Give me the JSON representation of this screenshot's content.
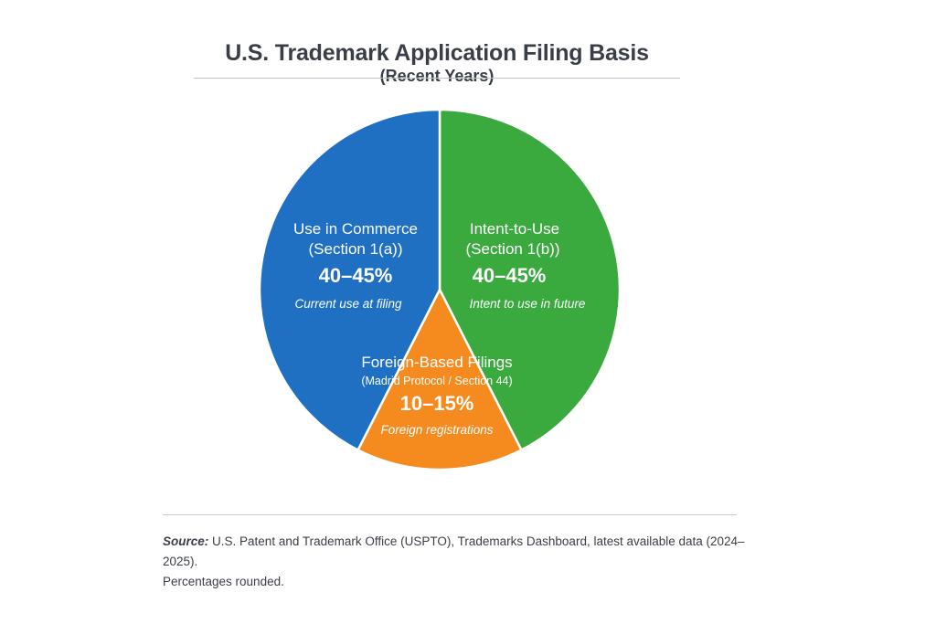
{
  "title": {
    "main": "U.S. Trademark Application Filing Basis",
    "sub": "(Recent Years)"
  },
  "chart_data": {
    "type": "pie",
    "title": "U.S. Trademark Application Filing Basis (Recent Years)",
    "slices": [
      {
        "name": "Use in Commerce",
        "subtitle": "(Section 1(a))",
        "value_label": "40–45%",
        "value": 42.5,
        "description": "Current use at filing",
        "color": "#1f6fc2"
      },
      {
        "name": "Intent-to-Use",
        "subtitle": "(Section 1(b))",
        "value_label": "40–45%",
        "value": 42.5,
        "description": "Intent to use in future",
        "color": "#3aaa3f"
      },
      {
        "name": "Foreign-Based Filings",
        "subtitle": "(Madrid Protocol / Section 44)",
        "value_label": "10–15%",
        "value": 15,
        "description": "Foreign registrations",
        "color": "#f58a1f"
      }
    ],
    "legend": "none"
  },
  "source": {
    "label": "Source:",
    "text": "U.S. Patent and Trademark Office (USPTO), Trademarks Dashboard, latest available data (2024–2025).",
    "note": "Percentages rounded."
  }
}
